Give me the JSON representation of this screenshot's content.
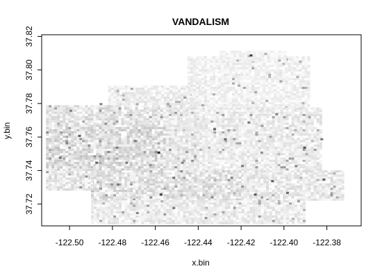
{
  "chart_data": {
    "type": "heatmap",
    "title": "VANDALISM",
    "xlabel": "x.bin",
    "ylabel": "y.bin",
    "xlim": [
      -122.513,
      -122.364
    ],
    "ylim": [
      37.707,
      37.821
    ],
    "x_ticks": [
      -122.5,
      -122.48,
      -122.46,
      -122.44,
      -122.42,
      -122.4,
      -122.38
    ],
    "x_tick_labels": [
      "-122.50",
      "-122.48",
      "-122.46",
      "-122.44",
      "-122.42",
      "-122.40",
      "-122.38"
    ],
    "y_ticks": [
      37.72,
      37.74,
      37.76,
      37.78,
      37.8,
      37.82
    ],
    "y_tick_labels": [
      "37.72",
      "37.74",
      "37.76",
      "37.78",
      "37.80",
      "37.82"
    ],
    "grid": false,
    "color_scale": [
      "#ffffff",
      "#222222"
    ],
    "bin_size": 0.0013,
    "regions": [
      {
        "x": [
          -122.511,
          -122.44
        ],
        "y": [
          37.766,
          37.779
        ],
        "intensity": 0.22
      },
      {
        "x": [
          -122.482,
          -122.44
        ],
        "y": [
          37.779,
          37.79
        ],
        "intensity": 0.15
      },
      {
        "x": [
          -122.445,
          -122.388
        ],
        "y": [
          37.777,
          37.808
        ],
        "intensity": 0.12
      },
      {
        "x": [
          -122.43,
          -122.4
        ],
        "y": [
          37.805,
          37.811
        ],
        "intensity": 0.1
      },
      {
        "x": [
          -122.511,
          -122.44
        ],
        "y": [
          37.74,
          37.766
        ],
        "intensity": 0.28
      },
      {
        "x": [
          -122.455,
          -122.383
        ],
        "y": [
          37.74,
          37.777
        ],
        "intensity": 0.16
      },
      {
        "x": [
          -122.49,
          -122.42
        ],
        "y": [
          37.722,
          37.74
        ],
        "intensity": 0.24
      },
      {
        "x": [
          -122.42,
          -122.372
        ],
        "y": [
          37.722,
          37.74
        ],
        "intensity": 0.18
      },
      {
        "x": [
          -122.49,
          -122.39
        ],
        "y": [
          37.708,
          37.722
        ],
        "intensity": 0.16
      },
      {
        "x": [
          -122.511,
          -122.49
        ],
        "y": [
          37.728,
          37.74
        ],
        "intensity": 0.2
      }
    ],
    "hotspots": [
      {
        "x": -122.416,
        "y": 37.808,
        "value": 0.85
      },
      {
        "x": -122.459,
        "y": 37.75,
        "value": 0.95
      },
      {
        "x": -122.433,
        "y": 37.764,
        "value": 0.7
      },
      {
        "x": -122.428,
        "y": 37.758,
        "value": 0.65
      },
      {
        "x": -122.42,
        "y": 37.742,
        "value": 0.6
      },
      {
        "x": -122.406,
        "y": 37.733,
        "value": 0.7
      },
      {
        "x": -122.391,
        "y": 37.753,
        "value": 0.75
      },
      {
        "x": -122.382,
        "y": 37.734,
        "value": 0.7
      },
      {
        "x": -122.399,
        "y": 37.726,
        "value": 0.65
      },
      {
        "x": -122.414,
        "y": 37.725,
        "value": 0.75
      },
      {
        "x": -122.458,
        "y": 37.725,
        "value": 0.85
      },
      {
        "x": -122.478,
        "y": 37.731,
        "value": 0.6
      },
      {
        "x": -122.496,
        "y": 37.76,
        "value": 0.7
      },
      {
        "x": -122.505,
        "y": 37.747,
        "value": 0.65
      },
      {
        "x": -122.488,
        "y": 37.744,
        "value": 0.7
      },
      {
        "x": -122.47,
        "y": 37.757,
        "value": 0.6
      },
      {
        "x": -122.448,
        "y": 37.744,
        "value": 0.55
      },
      {
        "x": -122.417,
        "y": 37.768,
        "value": 0.6
      },
      {
        "x": -122.404,
        "y": 37.773,
        "value": 0.55
      },
      {
        "x": -122.383,
        "y": 37.758,
        "value": 0.6
      },
      {
        "x": -122.452,
        "y": 37.717,
        "value": 0.6
      },
      {
        "x": -122.486,
        "y": 37.779,
        "value": 0.55
      },
      {
        "x": -122.5,
        "y": 37.775,
        "value": 0.55
      },
      {
        "x": -122.469,
        "y": 37.714,
        "value": 0.55
      },
      {
        "x": -122.437,
        "y": 37.711,
        "value": 0.5
      },
      {
        "x": -122.474,
        "y": 37.744,
        "value": 0.6
      },
      {
        "x": -122.452,
        "y": 37.735,
        "value": 0.65
      },
      {
        "x": -122.411,
        "y": 37.75,
        "value": 0.5
      },
      {
        "x": -122.425,
        "y": 37.735,
        "value": 0.55
      },
      {
        "x": -122.395,
        "y": 37.742,
        "value": 0.55
      }
    ]
  }
}
